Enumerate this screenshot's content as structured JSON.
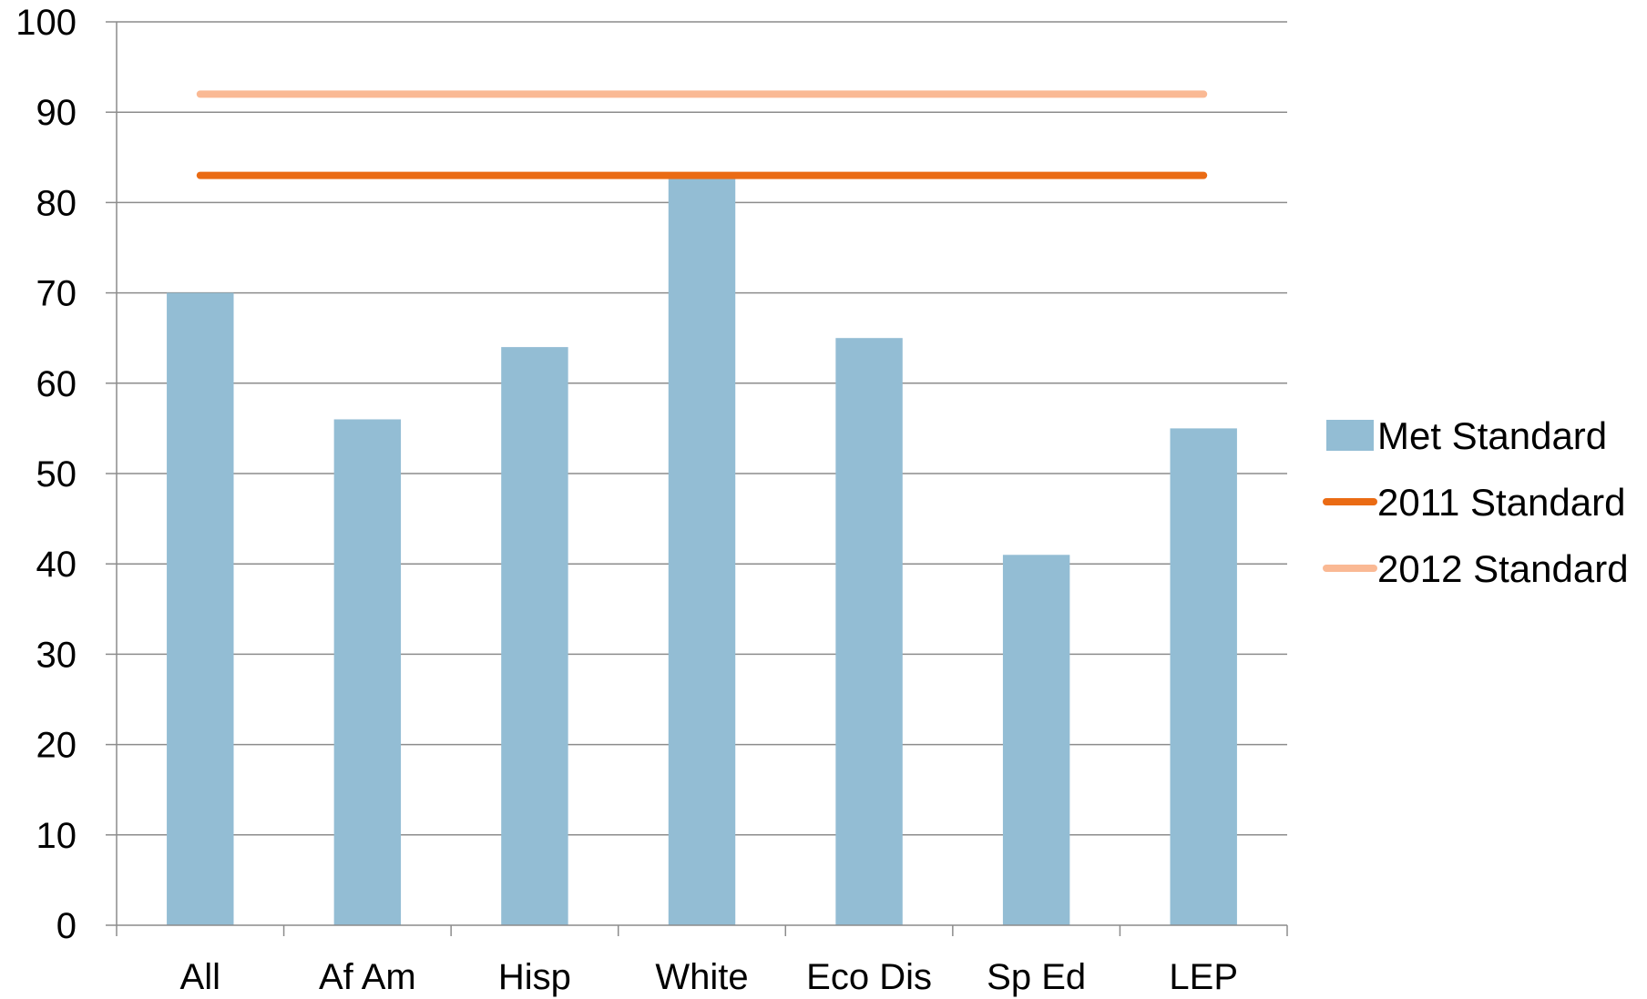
{
  "chart_data": {
    "type": "bar",
    "categories": [
      "All",
      "Af Am",
      "Hisp",
      "White",
      "Eco Dis",
      "Sp Ed",
      "LEP"
    ],
    "series": [
      {
        "name": "Met Standard",
        "kind": "bar",
        "values": [
          70,
          56,
          64,
          83,
          65,
          41,
          55
        ],
        "color": "#93bdd4"
      },
      {
        "name": "2011 Standard",
        "kind": "line",
        "values": [
          83,
          83,
          83,
          83,
          83,
          83,
          83
        ],
        "color": "#ea6b14"
      },
      {
        "name": "2012 Standard",
        "kind": "line",
        "values": [
          92,
          92,
          92,
          92,
          92,
          92,
          92
        ],
        "color": "#fab994"
      }
    ],
    "yticks": [
      "0",
      "10",
      "20",
      "30",
      "40",
      "50",
      "60",
      "70",
      "80",
      "90",
      "100"
    ],
    "ylim": [
      0,
      100
    ],
    "grid": true,
    "legend_position": "right",
    "title": "",
    "xlabel": "",
    "ylabel": ""
  }
}
